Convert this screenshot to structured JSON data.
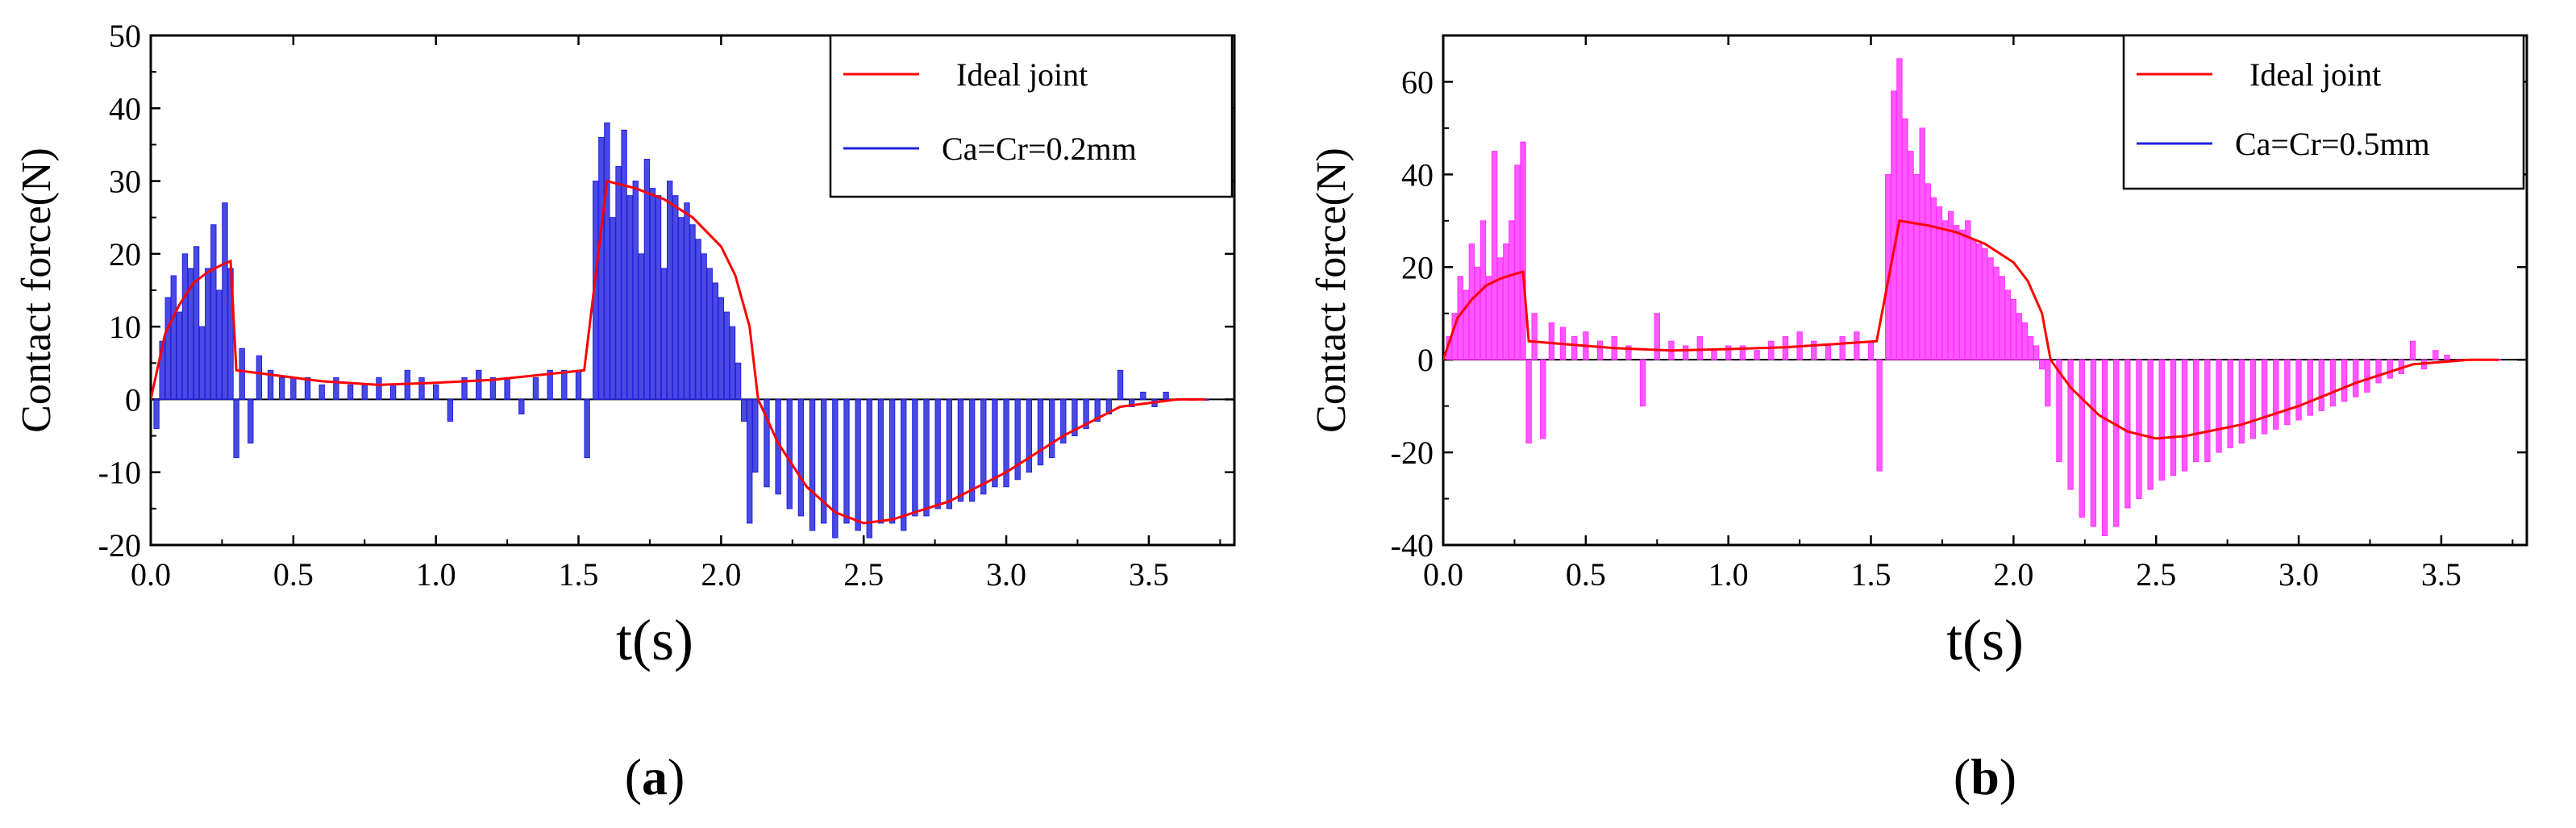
{
  "chart_data": [
    {
      "type": "bar",
      "panel_label": "a",
      "xlabel": "t(s)",
      "ylabel": "Contact force(N)",
      "xlim": [
        0.0,
        3.8
      ],
      "ylim": [
        -20,
        50
      ],
      "xticks": [
        "0.0",
        "0.5",
        "1.0",
        "1.5",
        "2.0",
        "2.5",
        "3.0",
        "3.5"
      ],
      "yticks": [
        "-20",
        "-10",
        "0",
        "10",
        "20",
        "30",
        "40",
        "50"
      ],
      "legend": [
        "Ideal joint",
        "Ca=Cr=0.2mm"
      ],
      "legend_position": "top-right",
      "series": [
        {
          "name": "Ideal joint",
          "kind": "line",
          "color": "#ff0000",
          "x": [
            0.0,
            0.05,
            0.1,
            0.15,
            0.2,
            0.25,
            0.28,
            0.3,
            0.4,
            0.6,
            0.8,
            1.0,
            1.2,
            1.4,
            1.52,
            1.6,
            1.7,
            1.8,
            1.9,
            2.0,
            2.05,
            2.1,
            2.13,
            2.2,
            2.3,
            2.4,
            2.5,
            2.6,
            2.8,
            3.0,
            3.2,
            3.4,
            3.6,
            3.7
          ],
          "y": [
            0,
            9,
            13,
            16,
            17.5,
            18.5,
            19,
            4,
            3.5,
            2.5,
            2.0,
            2.3,
            2.7,
            3.5,
            4,
            30,
            29,
            27.5,
            25,
            21,
            17,
            10,
            0,
            -6,
            -12,
            -15.5,
            -17,
            -16.5,
            -14,
            -10,
            -5,
            -1,
            0,
            0
          ]
        },
        {
          "name": "Ca=Cr=0.2mm",
          "kind": "bars",
          "color": "#2222dd",
          "x": [
            0.02,
            0.04,
            0.06,
            0.08,
            0.1,
            0.12,
            0.14,
            0.16,
            0.18,
            0.2,
            0.22,
            0.24,
            0.26,
            0.28,
            0.3,
            0.32,
            0.35,
            0.38,
            0.42,
            0.46,
            0.5,
            0.55,
            0.6,
            0.65,
            0.7,
            0.75,
            0.8,
            0.85,
            0.9,
            0.95,
            1.0,
            1.05,
            1.1,
            1.15,
            1.2,
            1.25,
            1.3,
            1.35,
            1.4,
            1.45,
            1.5,
            1.53,
            1.56,
            1.58,
            1.6,
            1.62,
            1.64,
            1.66,
            1.68,
            1.7,
            1.72,
            1.74,
            1.76,
            1.78,
            1.8,
            1.82,
            1.84,
            1.86,
            1.88,
            1.9,
            1.92,
            1.94,
            1.96,
            1.98,
            2.0,
            2.02,
            2.04,
            2.06,
            2.08,
            2.1,
            2.12,
            2.16,
            2.2,
            2.24,
            2.28,
            2.32,
            2.36,
            2.4,
            2.44,
            2.48,
            2.52,
            2.56,
            2.6,
            2.64,
            2.68,
            2.72,
            2.76,
            2.8,
            2.84,
            2.88,
            2.92,
            2.96,
            3.0,
            3.04,
            3.08,
            3.12,
            3.16,
            3.2,
            3.24,
            3.28,
            3.32,
            3.36,
            3.4,
            3.44,
            3.48,
            3.52,
            3.56,
            3.6,
            3.65,
            3.7
          ],
          "y": [
            -4,
            8,
            14,
            17,
            12,
            20,
            18,
            21,
            10,
            18,
            24,
            15,
            27,
            18,
            -8,
            7,
            -6,
            6,
            4,
            3,
            3,
            3,
            2,
            3,
            2,
            2,
            3,
            2,
            4,
            3,
            2,
            -3,
            3,
            4,
            3,
            3,
            -2,
            3,
            4,
            4,
            4,
            -8,
            30,
            36,
            38,
            25,
            32,
            37,
            28,
            30,
            20,
            33,
            29,
            28,
            18,
            30,
            28,
            25,
            27,
            24,
            22,
            20,
            18,
            16,
            14,
            12,
            10,
            5,
            -3,
            -17,
            -10,
            -12,
            -13,
            -15,
            -16,
            -18,
            -17,
            -19,
            -17,
            -18,
            -19,
            -17,
            -17,
            -18,
            -16,
            -16,
            -15,
            -15,
            -14,
            -14,
            -13,
            -12,
            -12,
            -11,
            -10,
            -9,
            -8,
            -6,
            -5,
            -4,
            -3,
            -2,
            4,
            -1,
            1,
            -1,
            1,
            0,
            0,
            0
          ]
        }
      ]
    },
    {
      "type": "bar",
      "panel_label": "b",
      "xlabel": "t(s)",
      "ylabel": "Contact force(N)",
      "xlim": [
        0.0,
        3.8
      ],
      "ylim": [
        -40,
        70
      ],
      "xticks": [
        "0.0",
        "0.5",
        "1.0",
        "1.5",
        "2.0",
        "2.5",
        "3.0",
        "3.5"
      ],
      "yticks": [
        "-40",
        "-20",
        "0",
        "20",
        "40",
        "60"
      ],
      "legend": [
        "Ideal joint",
        "Ca=Cr=0.5mm"
      ],
      "legend_position": "top-right",
      "series": [
        {
          "name": "Ideal joint",
          "kind": "line",
          "color": "#ff0000",
          "x": [
            0.0,
            0.05,
            0.1,
            0.15,
            0.2,
            0.25,
            0.28,
            0.3,
            0.4,
            0.6,
            0.8,
            1.0,
            1.2,
            1.4,
            1.52,
            1.6,
            1.7,
            1.8,
            1.9,
            2.0,
            2.05,
            2.1,
            2.13,
            2.2,
            2.3,
            2.4,
            2.5,
            2.6,
            2.8,
            3.0,
            3.2,
            3.4,
            3.6,
            3.7
          ],
          "y": [
            0,
            9,
            13,
            16,
            17.5,
            18.5,
            19,
            4,
            3.5,
            2.5,
            2.0,
            2.3,
            2.7,
            3.5,
            4,
            30,
            29,
            27.5,
            25,
            21,
            17,
            10,
            0,
            -6,
            -12,
            -15.5,
            -17,
            -16.5,
            -14,
            -10,
            -5,
            -1,
            0,
            0
          ]
        },
        {
          "name": "Ca=Cr=0.5mm",
          "kind": "bars",
          "color": "#ff33ff",
          "x": [
            0.02,
            0.04,
            0.06,
            0.08,
            0.1,
            0.12,
            0.14,
            0.16,
            0.18,
            0.2,
            0.22,
            0.24,
            0.26,
            0.28,
            0.3,
            0.32,
            0.35,
            0.38,
            0.42,
            0.46,
            0.5,
            0.55,
            0.6,
            0.65,
            0.7,
            0.75,
            0.8,
            0.85,
            0.9,
            0.95,
            1.0,
            1.05,
            1.1,
            1.15,
            1.2,
            1.25,
            1.3,
            1.35,
            1.4,
            1.45,
            1.5,
            1.53,
            1.56,
            1.58,
            1.6,
            1.62,
            1.64,
            1.66,
            1.68,
            1.7,
            1.72,
            1.74,
            1.76,
            1.78,
            1.8,
            1.82,
            1.84,
            1.86,
            1.88,
            1.9,
            1.92,
            1.94,
            1.96,
            1.98,
            2.0,
            2.02,
            2.04,
            2.06,
            2.08,
            2.1,
            2.12,
            2.16,
            2.2,
            2.24,
            2.28,
            2.32,
            2.36,
            2.4,
            2.44,
            2.48,
            2.52,
            2.56,
            2.6,
            2.64,
            2.68,
            2.72,
            2.76,
            2.8,
            2.84,
            2.88,
            2.92,
            2.96,
            3.0,
            3.04,
            3.08,
            3.12,
            3.16,
            3.2,
            3.24,
            3.28,
            3.32,
            3.36,
            3.4,
            3.44,
            3.48,
            3.52,
            3.56,
            3.6,
            3.65,
            3.7
          ],
          "y": [
            5,
            10,
            18,
            15,
            25,
            20,
            30,
            18,
            45,
            22,
            25,
            30,
            42,
            47,
            -18,
            10,
            -17,
            8,
            7,
            5,
            6,
            4,
            5,
            3,
            -10,
            10,
            4,
            3,
            5,
            2,
            3,
            3,
            2,
            4,
            5,
            6,
            4,
            3,
            5,
            6,
            4,
            -24,
            40,
            58,
            65,
            52,
            45,
            40,
            50,
            38,
            35,
            33,
            30,
            32,
            29,
            28,
            30,
            26,
            25,
            24,
            22,
            20,
            18,
            15,
            13,
            10,
            8,
            5,
            3,
            -2,
            -10,
            -22,
            -28,
            -34,
            -36,
            -38,
            -36,
            -32,
            -30,
            -28,
            -26,
            -25,
            -24,
            -22,
            -22,
            -20,
            -19,
            -18,
            -17,
            -16,
            -15,
            -14,
            -13,
            -12,
            -11,
            -10,
            -9,
            -8,
            -7,
            -5,
            -4,
            -3,
            4,
            -2,
            2,
            1,
            0,
            0,
            0,
            0
          ]
        }
      ]
    }
  ]
}
